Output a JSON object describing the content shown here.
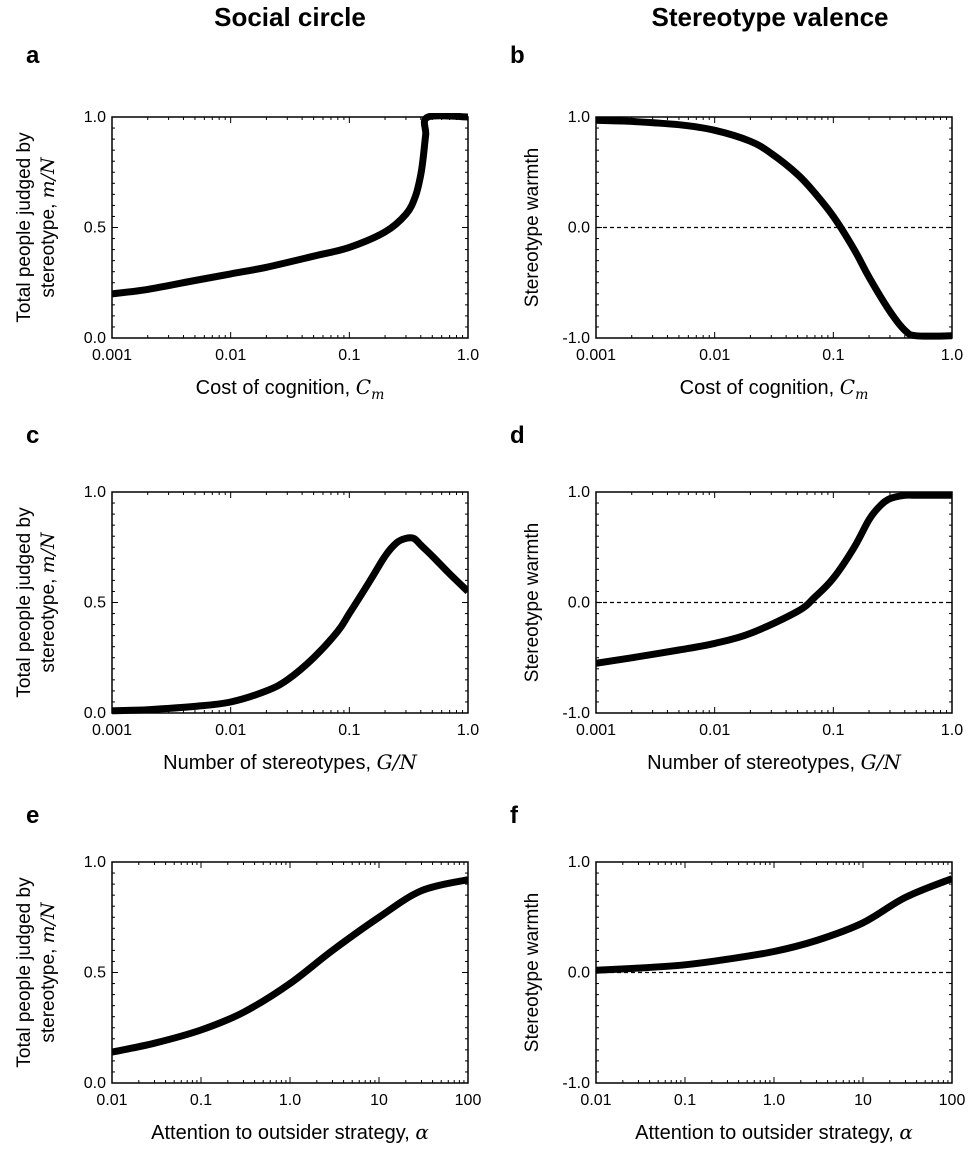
{
  "column_titles": {
    "left": "Social circle",
    "right": "Stereotype valence"
  },
  "panel_labels": [
    "a",
    "b",
    "c",
    "d",
    "e",
    "f"
  ],
  "colors": {
    "line": "#000000",
    "zero_line": "#000000"
  },
  "chart_data": [
    {
      "panel": "a",
      "type": "line",
      "xscale": "log",
      "xlabel": "Cost of cognition,",
      "xlabel_math": "C",
      "xlabel_math_sub": "m",
      "ylabel_line1": "Total people judged by",
      "ylabel_line2": "stereotype,",
      "ylabel_math": "m/N",
      "xticks": [
        "0.001",
        "0.01",
        "0.1",
        "1.0"
      ],
      "yticks": [
        "0.0",
        "0.5",
        "1.0"
      ],
      "xlim": [
        0.001,
        1.0
      ],
      "ylim": [
        0,
        1.0
      ],
      "zero_line": false,
      "series": [
        {
          "x": [
            0.001,
            0.002,
            0.005,
            0.01,
            0.02,
            0.05,
            0.1,
            0.2,
            0.3,
            0.36,
            0.4,
            0.42,
            0.44,
            0.46,
            1.0
          ],
          "y": [
            0.2,
            0.22,
            0.26,
            0.29,
            0.32,
            0.37,
            0.41,
            0.48,
            0.56,
            0.64,
            0.74,
            0.82,
            0.92,
            1.0,
            1.0
          ]
        }
      ]
    },
    {
      "panel": "b",
      "type": "line",
      "xscale": "log",
      "xlabel": "Cost of cognition,",
      "xlabel_math": "C",
      "xlabel_math_sub": "m",
      "ylabel_line1": "Stereotype warmth",
      "ylabel_line2": "",
      "ylabel_math": "",
      "xticks": [
        "0.001",
        "0.01",
        "0.1",
        "1.0"
      ],
      "yticks": [
        "-1.0",
        "0.0",
        "1.0"
      ],
      "xlim": [
        0.001,
        1.0
      ],
      "ylim": [
        -1.0,
        1.0
      ],
      "zero_line": true,
      "series": [
        {
          "x": [
            0.001,
            0.002,
            0.005,
            0.01,
            0.02,
            0.03,
            0.05,
            0.07,
            0.1,
            0.15,
            0.2,
            0.3,
            0.4,
            0.5,
            1.0
          ],
          "y": [
            0.97,
            0.96,
            0.93,
            0.88,
            0.78,
            0.67,
            0.48,
            0.31,
            0.1,
            -0.2,
            -0.45,
            -0.76,
            -0.93,
            -0.98,
            -0.98
          ]
        }
      ]
    },
    {
      "panel": "c",
      "type": "line",
      "xscale": "log",
      "xlabel": "Number of stereotypes,",
      "xlabel_math": "G/N",
      "xlabel_math_sub": "",
      "ylabel_line1": "Total people judged by",
      "ylabel_line2": "stereotype,",
      "ylabel_math": "m/N",
      "xticks": [
        "0.001",
        "0.01",
        "0.1",
        "1.0"
      ],
      "yticks": [
        "0.0",
        "0.5",
        "1.0"
      ],
      "xlim": [
        0.001,
        1.0
      ],
      "ylim": [
        0,
        1.0
      ],
      "zero_line": false,
      "series": [
        {
          "x": [
            0.001,
            0.002,
            0.005,
            0.01,
            0.02,
            0.03,
            0.05,
            0.08,
            0.1,
            0.15,
            0.2,
            0.25,
            0.3,
            0.35,
            0.4,
            0.5,
            0.7,
            1.0
          ],
          "y": [
            0.01,
            0.015,
            0.03,
            0.05,
            0.1,
            0.15,
            0.25,
            0.37,
            0.45,
            0.6,
            0.71,
            0.77,
            0.79,
            0.79,
            0.76,
            0.71,
            0.63,
            0.55
          ]
        }
      ]
    },
    {
      "panel": "d",
      "type": "line",
      "xscale": "log",
      "xlabel": "Number of stereotypes,",
      "xlabel_math": "G/N",
      "xlabel_math_sub": "",
      "ylabel_line1": "Stereotype warmth",
      "ylabel_line2": "",
      "ylabel_math": "",
      "xticks": [
        "0.001",
        "0.01",
        "0.1",
        "1.0"
      ],
      "yticks": [
        "-1.0",
        "0.0",
        "1.0"
      ],
      "xlim": [
        0.001,
        1.0
      ],
      "ylim": [
        -1.0,
        1.0
      ],
      "zero_line": true,
      "series": [
        {
          "x": [
            0.001,
            0.002,
            0.005,
            0.01,
            0.02,
            0.05,
            0.07,
            0.1,
            0.15,
            0.2,
            0.25,
            0.3,
            0.4,
            0.5,
            1.0
          ],
          "y": [
            -0.55,
            -0.5,
            -0.43,
            -0.37,
            -0.28,
            -0.08,
            0.05,
            0.22,
            0.5,
            0.75,
            0.88,
            0.94,
            0.97,
            0.97,
            0.97
          ]
        }
      ]
    },
    {
      "panel": "e",
      "type": "line",
      "xscale": "log",
      "xlabel": "Attention to outsider strategy,",
      "xlabel_math": "α",
      "xlabel_math_sub": "",
      "ylabel_line1": "Total people judged by",
      "ylabel_line2": "stereotype,",
      "ylabel_math": "m/N",
      "xticks": [
        "0.01",
        "0.1",
        "1.0",
        "10",
        "100"
      ],
      "yticks": [
        "0.0",
        "0.5",
        "1.0"
      ],
      "xlim": [
        0.01,
        100
      ],
      "ylim": [
        0,
        1.0
      ],
      "zero_line": false,
      "series": [
        {
          "x": [
            0.01,
            0.03,
            0.1,
            0.3,
            1,
            3,
            10,
            30,
            100
          ],
          "y": [
            0.14,
            0.18,
            0.24,
            0.32,
            0.45,
            0.6,
            0.75,
            0.87,
            0.92
          ]
        }
      ]
    },
    {
      "panel": "f",
      "type": "line",
      "xscale": "log",
      "xlabel": "Attention to outsider strategy,",
      "xlabel_math": "α",
      "xlabel_math_sub": "",
      "ylabel_line1": "Stereotype warmth",
      "ylabel_line2": "",
      "ylabel_math": "",
      "xticks": [
        "0.01",
        "0.1",
        "1.0",
        "10",
        "100"
      ],
      "yticks": [
        "-1.0",
        "0.0",
        "1.0"
      ],
      "xlim": [
        0.01,
        100
      ],
      "ylim": [
        -1.0,
        1.0
      ],
      "zero_line": true,
      "series": [
        {
          "x": [
            0.01,
            0.03,
            0.1,
            0.3,
            1,
            3,
            10,
            30,
            100
          ],
          "y": [
            0.02,
            0.04,
            0.07,
            0.12,
            0.19,
            0.29,
            0.45,
            0.68,
            0.85
          ]
        }
      ]
    }
  ]
}
